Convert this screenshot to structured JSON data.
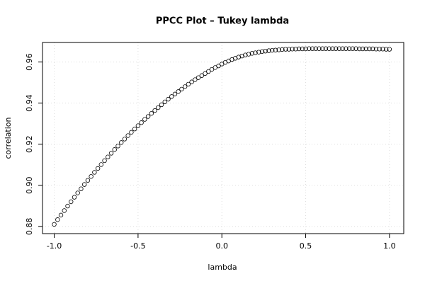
{
  "chart_data": {
    "type": "scatter",
    "title": "PPCC Plot – Tukey lambda",
    "x_label": "lambda",
    "y_label": "correlation",
    "x": [
      -1,
      -0.98,
      -0.96,
      -0.94,
      -0.92,
      -0.9,
      -0.88,
      -0.86,
      -0.84,
      -0.82,
      -0.8,
      -0.78,
      -0.76,
      -0.74,
      -0.72,
      -0.7,
      -0.68,
      -0.66,
      -0.64,
      -0.62,
      -0.6,
      -0.58,
      -0.56,
      -0.54,
      -0.52,
      -0.5,
      -0.48,
      -0.46,
      -0.44,
      -0.42,
      -0.4,
      -0.38,
      -0.36,
      -0.34,
      -0.32,
      -0.3,
      -0.28,
      -0.26,
      -0.24,
      -0.22,
      -0.2,
      -0.18,
      -0.16,
      -0.14,
      -0.12,
      -0.1,
      -0.08,
      -0.06,
      -0.04,
      -0.02,
      0,
      0.02,
      0.04,
      0.06,
      0.08,
      0.1,
      0.12,
      0.14,
      0.16,
      0.18,
      0.2,
      0.22,
      0.24,
      0.26,
      0.28,
      0.3,
      0.32,
      0.34,
      0.36,
      0.38,
      0.4,
      0.42,
      0.44,
      0.46,
      0.48,
      0.5,
      0.52,
      0.54,
      0.56,
      0.58,
      0.6,
      0.62,
      0.64,
      0.66,
      0.68,
      0.7,
      0.72,
      0.74,
      0.76,
      0.78,
      0.8,
      0.82,
      0.84,
      0.86,
      0.88,
      0.9,
      0.92,
      0.94,
      0.96,
      0.98,
      1
    ],
    "values": [
      0.881,
      0.8833,
      0.8855,
      0.8877,
      0.8899,
      0.892,
      0.8942,
      0.8963,
      0.8983,
      0.9004,
      0.9024,
      0.9043,
      0.9063,
      0.9082,
      0.9101,
      0.912,
      0.9138,
      0.9156,
      0.9174,
      0.9191,
      0.9208,
      0.9225,
      0.9242,
      0.9258,
      0.9274,
      0.929,
      0.9305,
      0.9321,
      0.9335,
      0.935,
      0.9364,
      0.9378,
      0.9392,
      0.9406,
      0.9419,
      0.9432,
      0.9444,
      0.9456,
      0.9468,
      0.948,
      0.9492,
      0.9503,
      0.9514,
      0.9524,
      0.9534,
      0.9544,
      0.9554,
      0.9564,
      0.9573,
      0.9581,
      0.959,
      0.9598,
      0.9605,
      0.9612,
      0.9618,
      0.9624,
      0.9629,
      0.9634,
      0.9638,
      0.9642,
      0.9645,
      0.9648,
      0.9651,
      0.9653,
      0.9655,
      0.9657,
      0.9658,
      0.9659,
      0.9661,
      0.9662,
      0.9662,
      0.9663,
      0.9663,
      0.9664,
      0.9664,
      0.9664,
      0.9665,
      0.9665,
      0.9665,
      0.9665,
      0.9665,
      0.9665,
      0.9665,
      0.9665,
      0.9665,
      0.9665,
      0.9665,
      0.9665,
      0.9665,
      0.9665,
      0.9665,
      0.9664,
      0.9664,
      0.9664,
      0.9664,
      0.9664,
      0.9663,
      0.9663,
      0.9663,
      0.9662,
      0.9662
    ],
    "color": "#000000",
    "xlim": [
      -1.07,
      1.085
    ],
    "xticks": [
      {
        "value": -1,
        "label": "-1.0"
      },
      {
        "value": -0.5,
        "label": "-0.5"
      },
      {
        "value": 0,
        "label": "0.0"
      },
      {
        "value": 0.5,
        "label": "0.5"
      },
      {
        "value": 1,
        "label": "1.0"
      }
    ],
    "ylim": [
      0.8765,
      0.9695
    ],
    "yticks": [
      0.88,
      {
        "value": 0.9,
        "label": "0.90"
      },
      0.92,
      0.94,
      0.96
    ],
    "grid": true
  }
}
